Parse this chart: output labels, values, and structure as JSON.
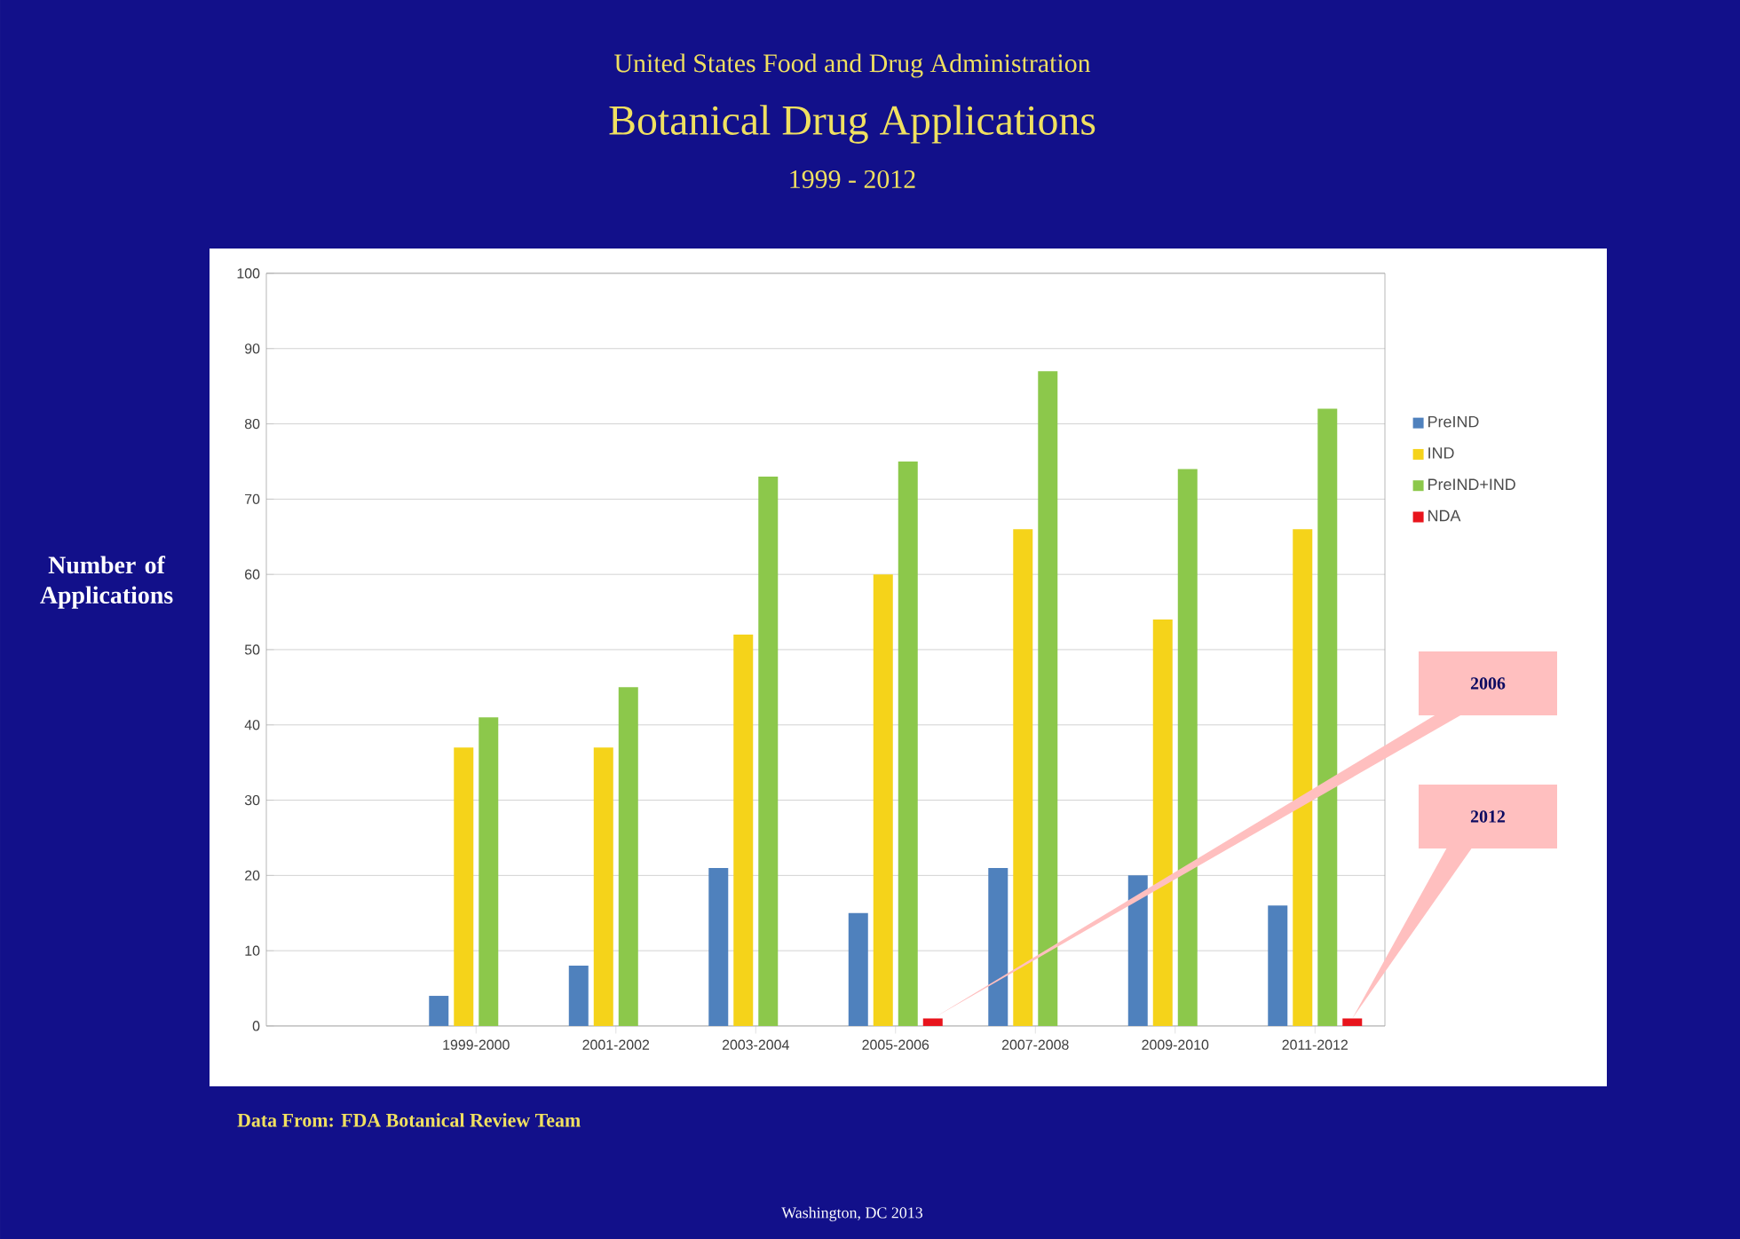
{
  "chart_data": {
    "type": "bar",
    "title": "Botanical Drug Applications",
    "subtitle": "1999 - 2012",
    "ylabel": "Number of Applications",
    "categories": [
      null,
      "1999-2000",
      "2001-2002",
      "2003-2004",
      "2005-2006",
      "2007-2008",
      "2009-2010",
      "2011-2012"
    ],
    "series": [
      {
        "name": "PreIND",
        "color": "#4f81bd",
        "values": [
          null,
          4,
          8,
          21,
          15,
          21,
          20,
          16
        ]
      },
      {
        "name": "IND",
        "color": "#f5d31a",
        "values": [
          null,
          37,
          37,
          52,
          60,
          66,
          54,
          66
        ]
      },
      {
        "name": "PreIND+IND",
        "color": "#8cc84b",
        "values": [
          null,
          41,
          45,
          73,
          75,
          87,
          74,
          82
        ]
      },
      {
        "name": "NDA",
        "color": "#e8141c",
        "values": [
          null,
          null,
          null,
          null,
          1,
          null,
          null,
          1
        ]
      }
    ],
    "ylim": [
      0,
      100
    ],
    "yticks": [
      0,
      10,
      20,
      30,
      40,
      50,
      60,
      70,
      80,
      90,
      100
    ],
    "grid": "y",
    "legend": "right",
    "annotations": [
      "United States Food and Drug Administration",
      "Data From:  FDA Botanical Review Team",
      "Washington, DC 2013",
      "2006",
      "2012"
    ]
  }
}
